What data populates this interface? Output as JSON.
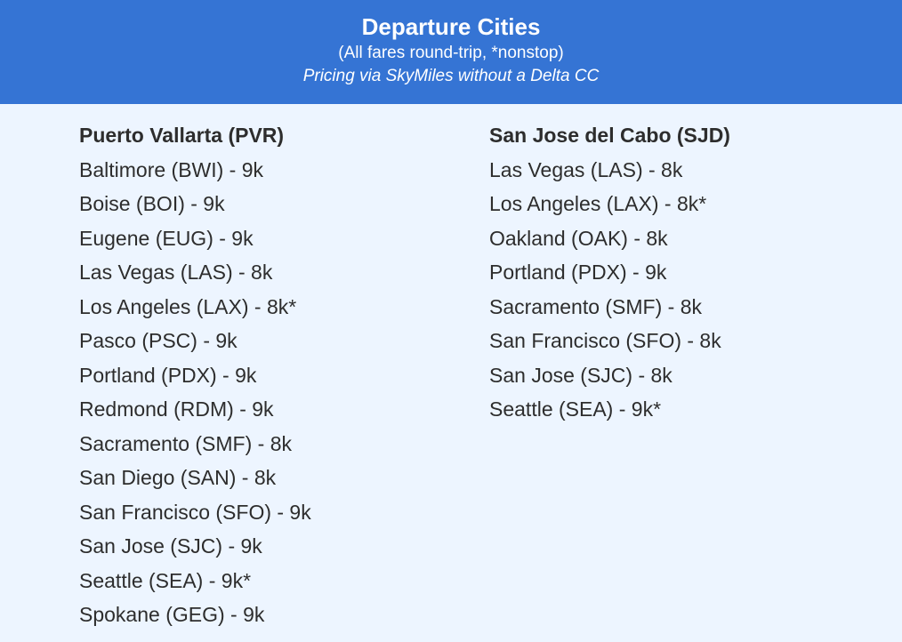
{
  "header": {
    "title": "Departure Cities",
    "subtitle": "(All fares round-trip, *nonstop)",
    "note": "Pricing via SkyMiles without a Delta CC"
  },
  "colors": {
    "header_bg": "#3574d4",
    "body_bg": "#edf5ff",
    "text": "#2d2d2d"
  },
  "columns": [
    {
      "heading": "Puerto Vallarta (PVR)",
      "items": [
        "Baltimore (BWI) - 9k",
        "Boise (BOI) - 9k",
        "Eugene (EUG) - 9k",
        "Las Vegas (LAS) - 8k",
        "Los Angeles (LAX) - 8k*",
        "Pasco (PSC) - 9k",
        "Portland (PDX) - 9k",
        "Redmond (RDM) - 9k",
        "Sacramento (SMF) - 8k",
        "San Diego (SAN) - 8k",
        "San Francisco (SFO) - 9k",
        "San Jose (SJC) - 9k",
        "Seattle (SEA) - 9k*",
        "Spokane (GEG) - 9k"
      ]
    },
    {
      "heading": "San Jose del Cabo (SJD)",
      "items": [
        "Las Vegas (LAS) - 8k",
        "Los Angeles (LAX) - 8k*",
        "Oakland (OAK) - 8k",
        "Portland (PDX) - 9k",
        "Sacramento (SMF) - 8k",
        "San Francisco (SFO) - 8k",
        "San Jose (SJC) - 8k",
        "Seattle (SEA) - 9k*"
      ]
    }
  ]
}
